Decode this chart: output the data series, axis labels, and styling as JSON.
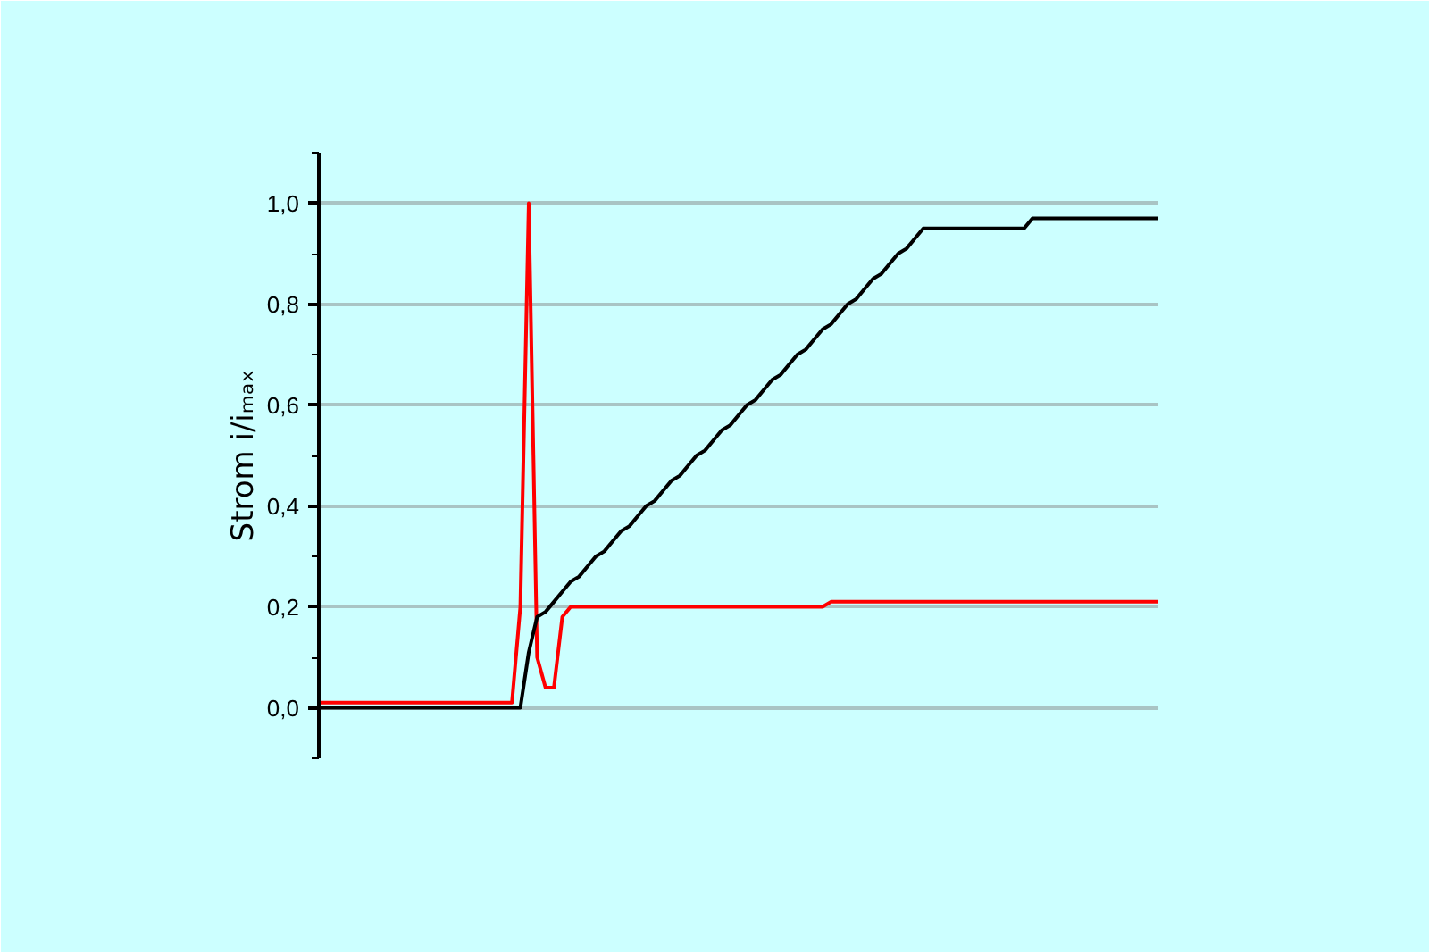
{
  "chart_data": {
    "type": "line",
    "ylabel": "Strom i/iₘₐₓ",
    "ylim": [
      -0.1,
      1.1
    ],
    "yticks": [
      {
        "value": 0,
        "label": "0,0"
      },
      {
        "value": 0.2,
        "label": "0,2"
      },
      {
        "value": 0.4,
        "label": "0,4"
      },
      {
        "value": 0.6,
        "label": "0,6"
      },
      {
        "value": 0.8,
        "label": "0,8"
      },
      {
        "value": 1.0,
        "label": "1,0"
      }
    ],
    "tick_labels": "y",
    "grid": "y",
    "line_style": "solid",
    "categories": [
      null,
      null,
      null,
      null,
      null,
      null,
      null,
      null,
      null,
      null,
      null,
      null,
      null,
      null,
      null,
      null,
      null,
      null,
      null,
      null,
      null,
      null,
      null,
      null,
      null,
      null,
      null,
      null,
      null,
      null,
      null,
      null,
      null,
      null,
      null,
      null,
      null,
      null,
      null,
      null,
      null,
      null,
      null,
      null,
      null,
      null,
      null,
      null,
      null,
      null,
      null,
      null,
      null,
      null,
      null,
      null,
      null,
      null,
      null,
      null,
      null,
      null,
      null,
      null,
      null,
      null,
      null,
      null,
      null,
      null,
      null,
      null,
      null,
      null,
      null,
      null,
      null,
      null,
      null,
      null,
      null,
      null,
      null,
      null,
      null,
      null,
      null,
      null,
      null,
      null,
      null,
      null,
      null,
      null,
      null,
      null,
      null,
      null,
      null,
      null,
      null
    ],
    "series": [
      {
        "color": "#ff0000",
        "values": [
          0.01,
          0.01,
          0.01,
          0.01,
          0.01,
          0.01,
          0.01,
          0.01,
          0.01,
          0.01,
          0.01,
          0.01,
          0.01,
          0.01,
          0.01,
          0.01,
          0.01,
          0.01,
          0.01,
          0.01,
          0.01,
          0.01,
          0.01,
          0.01,
          0.2,
          1.0,
          0.1,
          0.04,
          0.04,
          0.18,
          0.2,
          0.2,
          0.2,
          0.2,
          0.2,
          0.2,
          0.2,
          0.2,
          0.2,
          0.2,
          0.2,
          0.2,
          0.2,
          0.2,
          0.2,
          0.2,
          0.2,
          0.2,
          0.2,
          0.2,
          0.2,
          0.2,
          0.2,
          0.2,
          0.2,
          0.2,
          0.2,
          0.2,
          0.2,
          0.2,
          0.2,
          0.21,
          0.21,
          0.21,
          0.21,
          0.21,
          0.21,
          0.21,
          0.21,
          0.21,
          0.21,
          0.21,
          0.21,
          0.21,
          0.21,
          0.21,
          0.21,
          0.21,
          0.21,
          0.21,
          0.21,
          0.21,
          0.21,
          0.21,
          0.21,
          0.21,
          0.21,
          0.21,
          0.21,
          0.21,
          0.21,
          0.21,
          0.21,
          0.21,
          0.21,
          0.21,
          0.21,
          0.21,
          0.21,
          0.21,
          0.21
        ]
      },
      {
        "color": "#000000",
        "values": [
          0,
          0,
          0,
          0,
          0,
          0,
          0,
          0,
          0,
          0,
          0,
          0,
          0,
          0,
          0,
          0,
          0,
          0,
          0,
          0,
          0,
          0,
          0,
          0,
          0,
          0.11,
          0.18,
          0.19,
          0.21,
          0.23,
          0.25,
          0.26,
          0.28,
          0.3,
          0.31,
          0.33,
          0.35,
          0.36,
          0.38,
          0.4,
          0.41,
          0.43,
          0.45,
          0.46,
          0.48,
          0.5,
          0.51,
          0.53,
          0.55,
          0.56,
          0.58,
          0.6,
          0.61,
          0.63,
          0.65,
          0.66,
          0.68,
          0.7,
          0.71,
          0.73,
          0.75,
          0.76,
          0.78,
          0.8,
          0.81,
          0.83,
          0.85,
          0.86,
          0.88,
          0.9,
          0.91,
          0.93,
          0.95,
          0.95,
          0.95,
          0.95,
          0.95,
          0.95,
          0.95,
          0.95,
          0.95,
          0.95,
          0.95,
          0.95,
          0.95,
          0.97,
          0.97,
          0.97,
          0.97,
          0.97,
          0.97,
          0.97,
          0.97,
          0.97,
          0.97,
          0.97,
          0.97,
          0.97,
          0.97,
          0.97,
          0.97
        ]
      }
    ]
  }
}
